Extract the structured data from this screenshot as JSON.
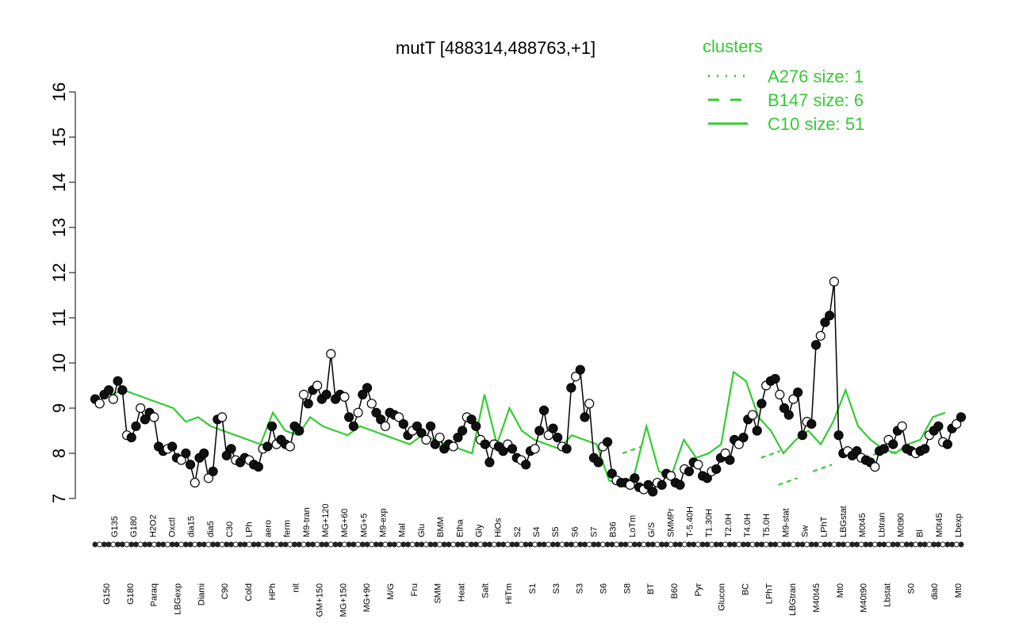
{
  "chart_data": {
    "type": "line",
    "title": "mutT [488314,488763,+1]",
    "xlabel": "",
    "ylabel": "",
    "ylim": [
      7,
      16
    ],
    "yticks": [
      7,
      8,
      9,
      10,
      11,
      12,
      13,
      14,
      15,
      16
    ],
    "x_tick_labels_top": [
      "G135",
      "G180",
      "H2O2",
      "Oxctl",
      "dia15",
      "dia5",
      "C30",
      "LPh",
      "aero",
      "ferm",
      "M9-tran",
      "MG+120",
      "MG+60",
      "MG+5",
      "M9-exp",
      "Mal",
      "Glu",
      "BMM",
      "Etha",
      "Gly",
      "HiOs",
      "S2",
      "S4",
      "S5",
      "S6",
      "S7",
      "B36",
      "LoTm",
      "G/S",
      "SMMPr",
      "T-5.40H",
      "T1.30H",
      "T2.0H",
      "T4.0H",
      "T5.0H",
      "M9-stat",
      "Sw",
      "LPhT",
      "LBGstat",
      "M0t45",
      "Lbtran",
      "M0t90",
      "Bl",
      "M0t45",
      "Lbexp"
    ],
    "x_tick_labels_bottom": [
      "G150",
      "G180",
      "Paraq",
      "LBGexp",
      "Diami",
      "C90",
      "Cold",
      "HPh",
      "nit",
      "GM+150",
      "MG+150",
      "MG+90",
      "M/G",
      "Fru",
      "SMM",
      "Heat",
      "Salt",
      "HiTm",
      "S1",
      "S3",
      "S3",
      "S6",
      "S8",
      "BT",
      "B60",
      "Pyr",
      "Glucon",
      "BC",
      "LPhT",
      "LBGtran",
      "M40t45",
      "Mt0",
      "M40t90",
      "Lbstat",
      "S0",
      "dia0",
      "Mt0"
    ],
    "series": [
      {
        "name": "mutT",
        "color": "#000000",
        "values": [
          9.2,
          9.1,
          9.3,
          9.4,
          9.2,
          9.6,
          9.4,
          8.4,
          8.35,
          8.6,
          9.0,
          8.75,
          8.9,
          8.8,
          8.15,
          8.05,
          8.1,
          8.15,
          7.9,
          7.85,
          8.0,
          7.75,
          7.35,
          7.9,
          8.0,
          7.45,
          7.6,
          8.75,
          8.8,
          7.95,
          8.1,
          7.85,
          7.8,
          7.9,
          7.85,
          7.75,
          7.7,
          8.1,
          8.15,
          8.6,
          8.2,
          8.3,
          8.2,
          8.15,
          8.6,
          8.5,
          9.3,
          9.1,
          9.4,
          9.5,
          9.2,
          9.3,
          10.2,
          9.2,
          9.3,
          9.25,
          8.8,
          8.6,
          8.9,
          9.3,
          9.45,
          9.1,
          8.9,
          8.75,
          8.6,
          8.9,
          8.85,
          8.8,
          8.65,
          8.4,
          8.5,
          8.6,
          8.45,
          8.3,
          8.6,
          8.2,
          8.35,
          8.1,
          8.2,
          8.15,
          8.35,
          8.5,
          8.8,
          8.75,
          8.6,
          8.3,
          8.2,
          7.8,
          8.2,
          8.15,
          8.05,
          8.2,
          8.1,
          7.9,
          7.85,
          7.75,
          8.05,
          8.1,
          8.5,
          8.95,
          8.4,
          8.55,
          8.35,
          8.15,
          8.1,
          9.45,
          9.7,
          9.85,
          8.8,
          9.1,
          7.9,
          7.8,
          8.15,
          8.25,
          7.55,
          7.4,
          7.35,
          7.35,
          7.3,
          7.45,
          7.25,
          7.2,
          7.3,
          7.15,
          7.35,
          7.3,
          7.55,
          7.5,
          7.35,
          7.3,
          7.65,
          7.6,
          7.8,
          7.75,
          7.5,
          7.45,
          7.6,
          7.65,
          7.9,
          8.0,
          7.85,
          8.3,
          8.2,
          8.35,
          8.75,
          8.85,
          8.5,
          9.1,
          9.5,
          9.6,
          9.65,
          9.3,
          9.0,
          8.85,
          9.2,
          9.35,
          8.4,
          8.7,
          8.65,
          10.4,
          10.6,
          10.9,
          11.05,
          11.8,
          8.4,
          8.0,
          8.05,
          7.95,
          8.05,
          7.9,
          7.85,
          7.8,
          7.7,
          8.05,
          8.1,
          8.3,
          8.2,
          8.5,
          8.6,
          8.1,
          8.05,
          8.0,
          8.05,
          8.1,
          8.4,
          8.5,
          8.6,
          8.25,
          8.2,
          8.55,
          8.65,
          8.8
        ]
      },
      {
        "name": "A276 size: 1",
        "color": "#33cc33",
        "dash": "dotted",
        "values": []
      },
      {
        "name": "B147 size: 6",
        "color": "#33cc33",
        "dash": "dashed",
        "values": [
          8.0,
          7.9,
          7.3,
          7.6,
          7.9,
          8.0
        ]
      },
      {
        "name": "C10 size: 51",
        "color": "#33cc33",
        "dash": "solid",
        "values": [
          9.3,
          9.4,
          9.3,
          9.2,
          9.1,
          9.0,
          8.7,
          8.8,
          8.6,
          8.5,
          8.4,
          8.3,
          8.2,
          8.9,
          8.5,
          8.4,
          8.8,
          8.6,
          8.5,
          8.4,
          8.6,
          8.5,
          8.4,
          8.3,
          8.2,
          8.4,
          8.3,
          8.2,
          8.1,
          8.0,
          9.3,
          8.2,
          9.0,
          8.5,
          8.3,
          8.2,
          8.1,
          8.4,
          8.3,
          8.2,
          7.4,
          7.3,
          7.5,
          8.6,
          7.6,
          7.5,
          8.3,
          7.9,
          8.0,
          8.2,
          9.8,
          9.6,
          8.8,
          8.5,
          8.0,
          8.3,
          8.5,
          8.2,
          8.7,
          9.4,
          8.6,
          8.3,
          8.1,
          8.0,
          8.2,
          8.3,
          8.8,
          8.9
        ]
      }
    ],
    "legend": {
      "title": "clusters",
      "position": "top-right",
      "entries": [
        "A276 size: 1",
        "B147 size: 6",
        "C10 size: 51"
      ],
      "color": "#33cc33"
    },
    "grid": false
  }
}
